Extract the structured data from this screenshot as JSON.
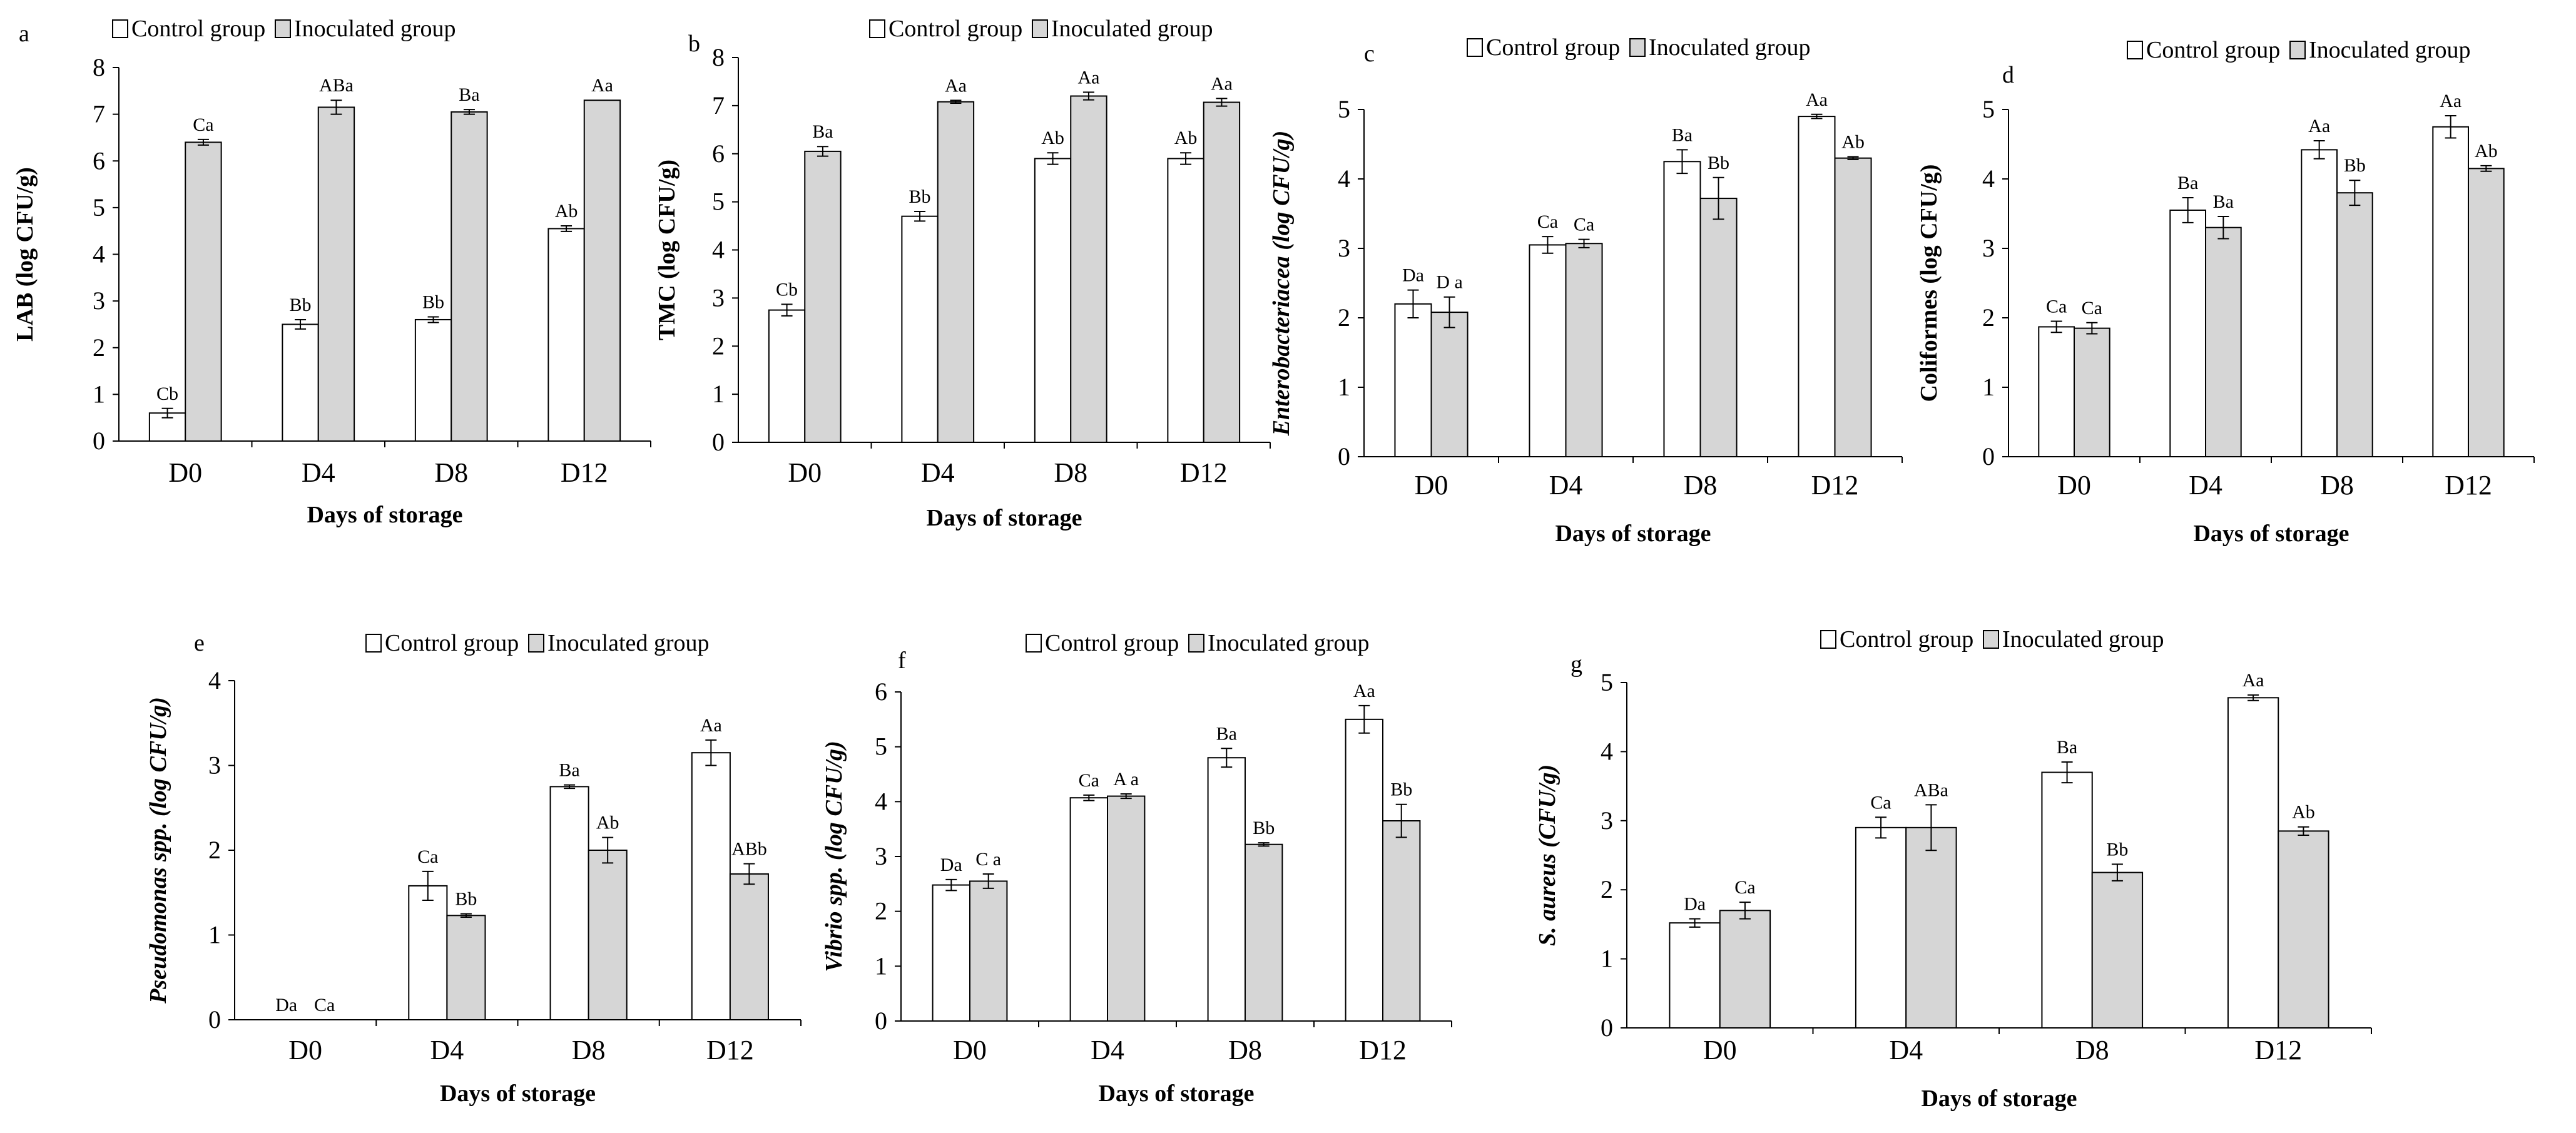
{
  "figure": {
    "legend": {
      "control": "Control group",
      "inoculated": "Inoculated group"
    },
    "colors": {
      "control": "#ffffff",
      "inoculated": "#d6d6d6",
      "stroke": "#000000"
    }
  },
  "chart_data": [
    {
      "panel": "a",
      "type": "bar",
      "categories": [
        "D0",
        "D4",
        "D8",
        "D12"
      ],
      "xlabel": "Days of storage",
      "ylabel": "LAB (log CFU/g)",
      "ylim": [
        0,
        8
      ],
      "yticks": [
        0,
        1,
        2,
        3,
        4,
        5,
        6,
        7,
        8
      ],
      "series": [
        {
          "name": "Control group",
          "values": [
            0.6,
            2.5,
            2.6,
            4.55
          ],
          "errors": [
            0.1,
            0.1,
            0.06,
            0.06
          ],
          "labels": [
            "Cb",
            "Bb",
            "Bb",
            "Ab"
          ]
        },
        {
          "name": "Inoculated group",
          "values": [
            6.4,
            7.15,
            7.05,
            7.3
          ],
          "errors": [
            0.06,
            0.15,
            0.05,
            0.0
          ],
          "labels": [
            "Ca",
            "ABa",
            "Ba",
            "Aa"
          ]
        }
      ]
    },
    {
      "panel": "b",
      "type": "bar",
      "categories": [
        "D0",
        "D4",
        "D8",
        "D12"
      ],
      "xlabel": "Days of storage",
      "ylabel": "TMC (log CFU/g)",
      "ylim": [
        0,
        8
      ],
      "yticks": [
        0,
        1,
        2,
        3,
        4,
        5,
        6,
        7,
        8
      ],
      "series": [
        {
          "name": "Control group",
          "values": [
            2.75,
            4.7,
            5.9,
            5.9
          ],
          "errors": [
            0.12,
            0.1,
            0.12,
            0.12
          ],
          "labels": [
            "Cb",
            "Bb",
            "Ab",
            "Ab"
          ]
        },
        {
          "name": "Inoculated group",
          "values": [
            6.05,
            7.08,
            7.2,
            7.07
          ],
          "errors": [
            0.1,
            0.03,
            0.08,
            0.08
          ],
          "labels": [
            "Ba",
            "Aa",
            "Aa",
            "Aa"
          ]
        }
      ]
    },
    {
      "panel": "c",
      "type": "bar",
      "categories": [
        "D0",
        "D4",
        "D8",
        "D12"
      ],
      "xlabel": "Days of storage",
      "ylabel": "Enterobacteriacea (log CFU/g)",
      "ylim": [
        0,
        5
      ],
      "yticks": [
        0,
        1,
        2,
        3,
        4,
        5
      ],
      "series": [
        {
          "name": "Control group",
          "values": [
            2.2,
            3.05,
            4.25,
            4.9
          ],
          "errors": [
            0.2,
            0.12,
            0.17,
            0.03
          ],
          "labels": [
            "Da",
            "Ca",
            "Ba",
            "Aa"
          ]
        },
        {
          "name": "Inoculated group",
          "values": [
            2.08,
            3.07,
            3.72,
            4.3
          ],
          "errors": [
            0.22,
            0.06,
            0.3,
            0.02
          ],
          "labels": [
            "D a",
            "Ca",
            "Bb",
            "Ab"
          ]
        }
      ]
    },
    {
      "panel": "d",
      "type": "bar",
      "categories": [
        "D0",
        "D4",
        "D8",
        "D12"
      ],
      "xlabel": "Days of storage",
      "ylabel": "Coliformes (log CFU/g)",
      "ylim": [
        0,
        5
      ],
      "yticks": [
        0,
        1,
        2,
        3,
        4,
        5
      ],
      "series": [
        {
          "name": "Control group",
          "values": [
            1.87,
            3.55,
            4.42,
            4.75
          ],
          "errors": [
            0.08,
            0.18,
            0.13,
            0.16
          ],
          "labels": [
            "Ca",
            "Ba",
            "Aa",
            "Aa"
          ]
        },
        {
          "name": "Inoculated group",
          "values": [
            1.85,
            3.3,
            3.8,
            4.15
          ],
          "errors": [
            0.08,
            0.16,
            0.18,
            0.04
          ],
          "labels": [
            "Ca",
            "Ba",
            "Bb",
            "Ab"
          ]
        }
      ]
    },
    {
      "panel": "e",
      "type": "bar",
      "categories": [
        "D0",
        "D4",
        "D8",
        "D12"
      ],
      "xlabel": "Days of storage",
      "ylabel": "Pseudomonas spp. (log CFU/g)",
      "ylim": [
        0,
        4
      ],
      "yticks": [
        0,
        1,
        2,
        3,
        4
      ],
      "series": [
        {
          "name": "Control group",
          "values": [
            0,
            1.58,
            2.75,
            3.15
          ],
          "errors": [
            0,
            0.17,
            0.02,
            0.15
          ],
          "labels": [
            "Da",
            "Ca",
            "Ba",
            "Aa"
          ]
        },
        {
          "name": "Inoculated group",
          "values": [
            0,
            1.23,
            2.0,
            1.72
          ],
          "errors": [
            0,
            0.02,
            0.15,
            0.12
          ],
          "labels": [
            "Ca",
            "Bb",
            "Ab",
            "ABb"
          ]
        }
      ]
    },
    {
      "panel": "f",
      "type": "bar",
      "categories": [
        "D0",
        "D4",
        "D8",
        "D12"
      ],
      "xlabel": "Days of storage",
      "ylabel": "Vibrio spp. (log CFU/g)",
      "ylim": [
        0,
        6
      ],
      "yticks": [
        0,
        1,
        2,
        3,
        4,
        5,
        6
      ],
      "series": [
        {
          "name": "Control group",
          "values": [
            2.48,
            4.07,
            4.8,
            5.5
          ],
          "errors": [
            0.1,
            0.05,
            0.17,
            0.25
          ],
          "labels": [
            "Da",
            "Ca",
            "Ba",
            "Aa"
          ]
        },
        {
          "name": "Inoculated group",
          "values": [
            2.55,
            4.1,
            3.22,
            3.65
          ],
          "errors": [
            0.13,
            0.04,
            0.03,
            0.3
          ],
          "labels": [
            "C a",
            "A a",
            "Bb",
            "Bb"
          ]
        }
      ]
    },
    {
      "panel": "g",
      "type": "bar",
      "categories": [
        "D0",
        "D4",
        "D8",
        "D12"
      ],
      "xlabel": "Days of storage",
      "ylabel": "S. aureus (CFU/g)",
      "ylim": [
        0,
        5
      ],
      "yticks": [
        0,
        1,
        2,
        3,
        4,
        5
      ],
      "series": [
        {
          "name": "Control group",
          "values": [
            1.52,
            2.9,
            3.7,
            4.78
          ],
          "errors": [
            0.06,
            0.15,
            0.15,
            0.04
          ],
          "labels": [
            "Da",
            "Ca",
            "Ba",
            "Aa"
          ]
        },
        {
          "name": "Inoculated group",
          "values": [
            1.7,
            2.9,
            2.25,
            2.85
          ],
          "errors": [
            0.12,
            0.33,
            0.12,
            0.06
          ],
          "labels": [
            "Ca",
            "ABa",
            "Bb",
            "Ab"
          ]
        }
      ]
    }
  ]
}
